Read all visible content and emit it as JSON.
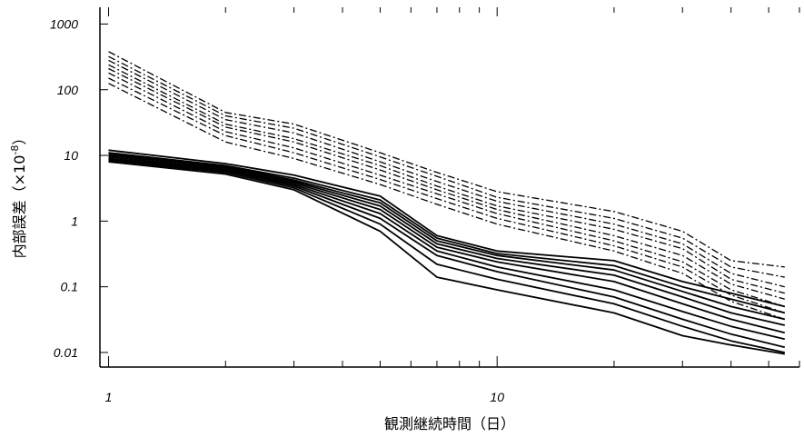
{
  "chart_data": {
    "type": "line",
    "xlabel": "観測継続時間（日）",
    "ylabel": "内部誤差（×10",
    "ylabel_exponent": "-8",
    "ylabel_suffix": "）",
    "xscale": "log",
    "yscale": "log",
    "xlim": [
      0.95,
      60
    ],
    "ylim": [
      0.006,
      1800
    ],
    "x_ticks": [
      1,
      10
    ],
    "x_tick_labels": [
      "1",
      "10"
    ],
    "y_ticks": [
      0.01,
      0.1,
      1,
      10,
      100,
      1000
    ],
    "y_tick_labels": [
      "0.01",
      "0.1",
      "1",
      "10",
      "100",
      "1000"
    ],
    "grid": false,
    "legend": "none",
    "x": [
      1,
      2,
      3,
      5,
      7,
      10,
      20,
      30,
      40,
      55
    ],
    "series": [
      {
        "style": "dashdot",
        "values": [
          380,
          45,
          30,
          11,
          5.5,
          2.8,
          1.4,
          0.7,
          0.25,
          0.2
        ]
      },
      {
        "style": "dashdot",
        "values": [
          320,
          40,
          26,
          9.5,
          4.8,
          2.3,
          1.1,
          0.55,
          0.2,
          0.14
        ]
      },
      {
        "style": "dashdot",
        "values": [
          280,
          35,
          22,
          8,
          4,
          2,
          0.9,
          0.45,
          0.16,
          0.1
        ]
      },
      {
        "style": "dashdot",
        "values": [
          240,
          30,
          18,
          7,
          3.4,
          1.7,
          0.75,
          0.38,
          0.13,
          0.08
        ]
      },
      {
        "style": "dashdot",
        "values": [
          210,
          27,
          16,
          6,
          3,
          1.5,
          0.6,
          0.3,
          0.11,
          0.065
        ]
      },
      {
        "style": "dashdot",
        "values": [
          180,
          23,
          13,
          5,
          2.6,
          1.3,
          0.5,
          0.24,
          0.09,
          0.05
        ]
      },
      {
        "style": "dashdot",
        "values": [
          150,
          20,
          11,
          4.3,
          2.2,
          1.1,
          0.42,
          0.2,
          0.075,
          0.04
        ]
      },
      {
        "style": "dashdot",
        "values": [
          125,
          16,
          9,
          3.6,
          1.8,
          0.9,
          0.35,
          0.16,
          0.06,
          0.032
        ]
      },
      {
        "style": "solid",
        "values": [
          12,
          7.5,
          5,
          2.4,
          0.6,
          0.35,
          0.25,
          0.12,
          0.08,
          0.05
        ]
      },
      {
        "style": "solid",
        "values": [
          11,
          7,
          4.5,
          2.1,
          0.55,
          0.32,
          0.21,
          0.1,
          0.065,
          0.04
        ]
      },
      {
        "style": "solid",
        "values": [
          10.5,
          6.8,
          4.2,
          1.9,
          0.5,
          0.3,
          0.18,
          0.085,
          0.05,
          0.032
        ]
      },
      {
        "style": "solid",
        "values": [
          10,
          6.5,
          4,
          1.7,
          0.45,
          0.27,
          0.15,
          0.07,
          0.04,
          0.026
        ]
      },
      {
        "style": "solid",
        "values": [
          9.5,
          6.2,
          3.8,
          1.5,
          0.4,
          0.24,
          0.12,
          0.055,
          0.032,
          0.02
        ]
      },
      {
        "style": "solid",
        "values": [
          9,
          6,
          3.6,
          1.3,
          0.35,
          0.2,
          0.09,
          0.042,
          0.025,
          0.016
        ]
      },
      {
        "style": "solid",
        "values": [
          8.7,
          5.8,
          3.4,
          1.1,
          0.3,
          0.17,
          0.07,
          0.032,
          0.019,
          0.012
        ]
      },
      {
        "style": "solid",
        "values": [
          8.3,
          5.5,
          3.2,
          0.9,
          0.22,
          0.13,
          0.055,
          0.025,
          0.015,
          0.01
        ]
      },
      {
        "style": "solid",
        "values": [
          8,
          5.2,
          3,
          0.7,
          0.14,
          0.09,
          0.04,
          0.018,
          0.013,
          0.0095
        ]
      }
    ]
  }
}
